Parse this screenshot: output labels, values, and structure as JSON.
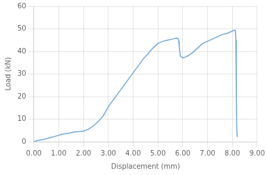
{
  "chart_data": {
    "type": "line",
    "xlabel": "Displacement (mm)",
    "ylabel": "Load (kN)",
    "x": [
      0.0,
      0.05,
      0.1,
      0.2,
      0.3,
      0.4,
      0.5,
      0.6,
      0.7,
      0.8,
      0.9,
      1.0,
      1.05,
      1.1,
      1.2,
      1.3,
      1.4,
      1.5,
      1.55,
      1.6,
      1.65,
      1.7,
      1.75,
      1.8,
      1.9,
      2.0,
      2.2,
      2.4,
      2.6,
      2.8,
      3.0,
      3.2,
      3.4,
      3.6,
      3.8,
      4.0,
      4.2,
      4.4,
      4.6,
      4.8,
      5.0,
      5.2,
      5.4,
      5.6,
      5.7,
      5.75,
      5.8,
      5.82,
      5.84,
      5.86,
      5.88,
      5.9,
      5.95,
      6.0,
      6.1,
      6.2,
      6.4,
      6.6,
      6.8,
      7.0,
      7.2,
      7.4,
      7.6,
      7.8,
      8.0,
      8.1,
      8.12,
      8.14,
      8.16,
      8.18,
      8.2
    ],
    "values": [
      0.0,
      0.2,
      0.4,
      0.6,
      0.8,
      1.0,
      1.3,
      1.6,
      1.9,
      2.2,
      2.5,
      2.8,
      3.0,
      3.2,
      3.4,
      3.6,
      3.8,
      4.0,
      4.1,
      4.2,
      4.3,
      4.35,
      4.4,
      4.45,
      4.55,
      4.7,
      5.5,
      7.0,
      9.0,
      11.5,
      15.5,
      18.5,
      21.5,
      24.5,
      27.5,
      30.5,
      33.5,
      36.5,
      39.0,
      41.5,
      43.5,
      44.5,
      45.0,
      45.5,
      45.8,
      45.9,
      45.8,
      45.5,
      44.5,
      42.0,
      40.0,
      38.0,
      37.5,
      37.2,
      37.5,
      38.0,
      39.5,
      41.5,
      43.5,
      44.5,
      45.5,
      46.5,
      47.5,
      48.0,
      49.0,
      49.5,
      49.3,
      45.0,
      20.0,
      5.0,
      2.0
    ],
    "color": "#6fa8dc",
    "xlim": [
      0.0,
      9.0
    ],
    "ylim": [
      0,
      60
    ],
    "xticks": [
      {
        "value": 0.0,
        "label": "0.00"
      },
      {
        "value": 1.0,
        "label": "1.00"
      },
      {
        "value": 2.0,
        "label": "2.00"
      },
      {
        "value": 3.0,
        "label": "3.00"
      },
      {
        "value": 4.0,
        "label": "4.00"
      },
      {
        "value": 5.0,
        "label": "5.00"
      },
      {
        "value": 6.0,
        "label": "6.00"
      },
      {
        "value": 7.0,
        "label": "7.00"
      },
      {
        "value": 8.0,
        "label": "8.00"
      },
      {
        "value": 9.0,
        "label": "9.00"
      }
    ],
    "yticks": [
      0,
      10,
      20,
      30,
      40,
      50,
      60
    ],
    "grid": true
  }
}
